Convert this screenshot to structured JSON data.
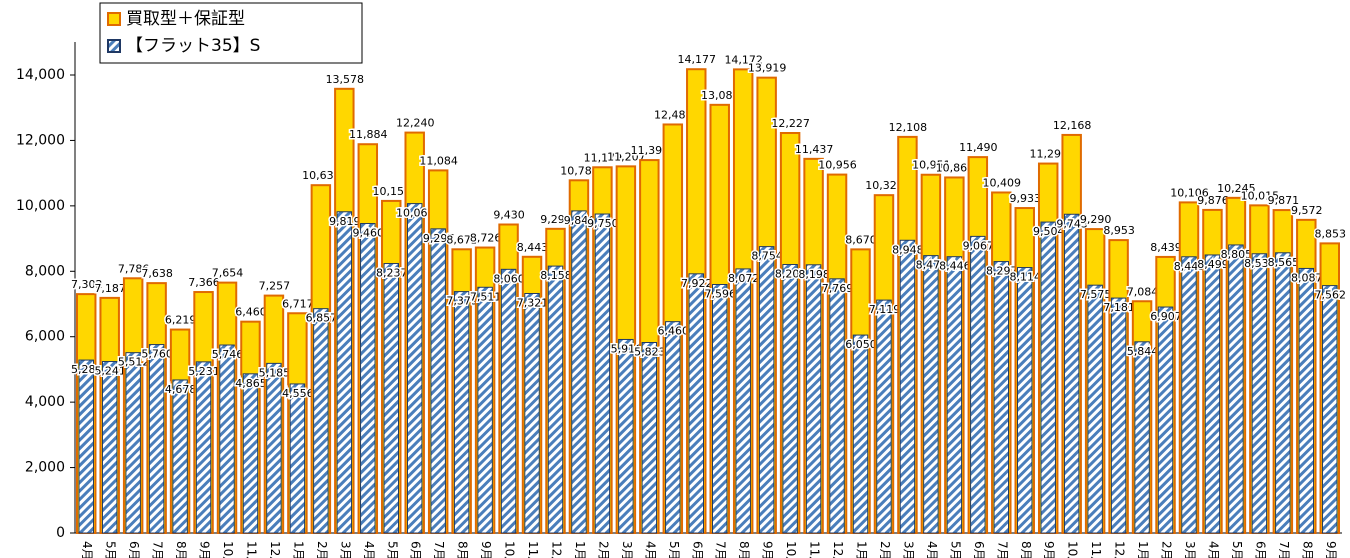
{
  "chart_data": {
    "type": "bar",
    "categories": [
      "4月",
      "5月",
      "6月",
      "7月",
      "8月",
      "9月",
      "10月",
      "11月",
      "12月",
      "1月",
      "2月",
      "3月",
      "4月",
      "5月",
      "6月",
      "7月",
      "8月",
      "9月",
      "10月",
      "11月",
      "12月",
      "1月",
      "2月",
      "3月",
      "4月",
      "5月",
      "6月",
      "7月",
      "8月",
      "9月",
      "10月",
      "11月",
      "12月",
      "1月",
      "2月",
      "3月",
      "4月",
      "5月",
      "6月",
      "7月",
      "8月",
      "9月",
      "10月",
      "11月",
      "12月",
      "1月",
      "2月",
      "3月",
      "4月",
      "5月",
      "6月",
      "7月",
      "8月",
      "9月"
    ],
    "series": [
      {
        "name": "買取型＋保証型",
        "color": "#ffd700",
        "values": [
          7302,
          7187,
          7786,
          7638,
          6219,
          7366,
          7654,
          6460,
          7257,
          6717,
          10632,
          13578,
          11884,
          10151,
          12240,
          11084,
          8672,
          8726,
          9430,
          8443,
          9298,
          10781,
          11179,
          11207,
          11399,
          12488,
          14177,
          13088,
          14172,
          13919,
          12227,
          11437,
          10956,
          8670,
          10327,
          12108,
          10951,
          10868,
          11490,
          10409,
          9933,
          11293,
          12168,
          9290,
          8953,
          7084,
          8439,
          10106,
          9876,
          10245,
          10015,
          9871,
          9572,
          8853
        ],
        "value_labels": [
          "7,302",
          "7,187",
          "7,786",
          "7,638",
          "6,219",
          "7,366",
          "7,654",
          "6,460",
          "7,257",
          "6,717",
          "10,632",
          "13,578",
          "11,884",
          "10,151",
          "12,240",
          "11,084",
          "8,672",
          "8,726",
          "9,430",
          "8,443",
          "9,298",
          "10,781",
          "11,179",
          "11,207",
          "11,399",
          "12,488",
          "14,177",
          "13,088",
          "14,172",
          "13,919",
          "12,227",
          "11,437",
          "10,956",
          "8,670",
          "10,327",
          "12,108",
          "10,951",
          "10,868",
          "11,490",
          "10,409",
          "9,933",
          "11,293",
          "12,168",
          "9,290",
          "8,953",
          "7,084",
          "8,439",
          "10,106",
          "9,876",
          "10,245",
          "10,015",
          "9,871",
          "9,572",
          "8,853"
        ]
      },
      {
        "name": "【フラット35】S",
        "color": "#4a7ebb",
        "values": [
          5286,
          5241,
          5512,
          5760,
          4678,
          5231,
          5746,
          4865,
          5185,
          4556,
          6857,
          9819,
          9460,
          8237,
          10069,
          9297,
          7379,
          7511,
          8060,
          7321,
          8158,
          9846,
          9750,
          5916,
          5823,
          6460,
          7922,
          7596,
          8072,
          8754,
          8207,
          8198,
          7769,
          6050,
          7119,
          8948,
          8479,
          8446,
          9067,
          8297,
          8114,
          9504,
          9743,
          7575,
          7181,
          5844,
          6907,
          8443,
          8499,
          8805,
          8535,
          8565,
          8087,
          7562
        ],
        "value_labels": [
          "5,286",
          "5,241",
          "5,512",
          "5,760",
          "4,678",
          "5,231",
          "5,746",
          "4,865",
          "5,185",
          "4,556",
          "6,857",
          "9,819",
          "9,460",
          "8,237",
          "10,069",
          "9,297",
          "7,379",
          "7,511",
          "8,060",
          "7,321",
          "8,158",
          "9,846",
          "9,750",
          "5,916",
          "5,823",
          "6,460",
          "7,922",
          "7,596",
          "8,072",
          "8,754",
          "8,207",
          "8,198",
          "7,769",
          "6,050",
          "7,119",
          "8,948",
          "8,479",
          "8,446",
          "9,067",
          "8,297",
          "8,114",
          "9,504",
          "9,743",
          "7,575",
          "7,181",
          "5,844",
          "6,907",
          "8,443",
          "8,499",
          "8,805",
          "8,535",
          "8,565",
          "8,087",
          "7,562"
        ]
      }
    ],
    "ylim": [
      0,
      14000
    ],
    "yticks": [
      0,
      {
        "value": 2000,
        "label": "2,000"
      },
      {
        "value": 4000,
        "label": "4,000"
      },
      {
        "value": 6000,
        "label": "6,000"
      },
      {
        "value": 8000,
        "label": "8,000"
      },
      {
        "value": 10000,
        "label": "10,000"
      },
      {
        "value": 12000,
        "label": "12,000"
      },
      {
        "value": 14000,
        "label": "14,000"
      }
    ],
    "legend": "upper left"
  }
}
